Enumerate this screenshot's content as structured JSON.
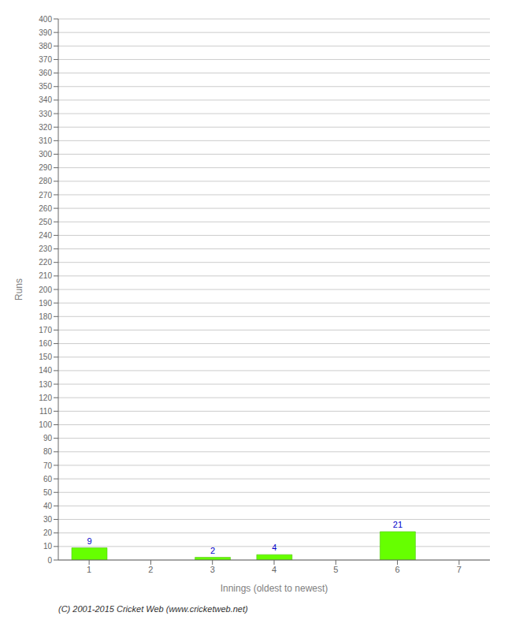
{
  "chart_data": {
    "type": "bar",
    "categories": [
      1,
      2,
      3,
      4,
      5,
      6,
      7
    ],
    "values": [
      9,
      0,
      2,
      4,
      0,
      21,
      0
    ],
    "color": "#66ff00",
    "xlabel": "Innings (oldest to newest)",
    "ylabel": "Runs",
    "ylim": [
      0,
      400
    ],
    "yticks": [
      0,
      10,
      20,
      30,
      40,
      50,
      60,
      70,
      80,
      90,
      100,
      110,
      120,
      130,
      140,
      150,
      160,
      170,
      180,
      190,
      200,
      210,
      220,
      230,
      240,
      250,
      260,
      270,
      280,
      290,
      300,
      310,
      320,
      330,
      340,
      350,
      360,
      370,
      380,
      390,
      400
    ],
    "grid": true,
    "data_labels": true,
    "annotation": "(C) 2001-2015 Cricket Web (www.cricketweb.net)"
  }
}
